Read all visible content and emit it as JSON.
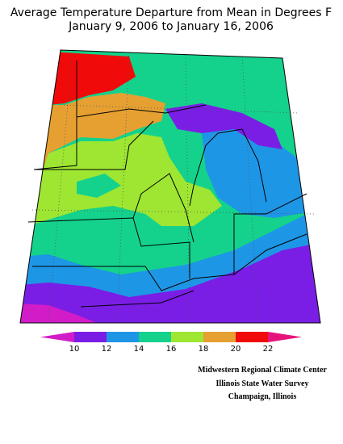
{
  "title": [
    "Average Temperature Departure from Mean in Degrees F",
    "January 9, 2006 to January 16, 2006"
  ],
  "legend": {
    "ticks": [
      10,
      12,
      14,
      16,
      18,
      20,
      22
    ],
    "colors": [
      "#d21cc8",
      "#7a1ee6",
      "#1e96e6",
      "#14d28c",
      "#9ee632",
      "#e6a032",
      "#f00a0a",
      "#e6147a"
    ]
  },
  "credits": [
    "Midwestern Regional Climate Center",
    "Illinois State Water Survey",
    "Champaign, Illinois"
  ]
}
